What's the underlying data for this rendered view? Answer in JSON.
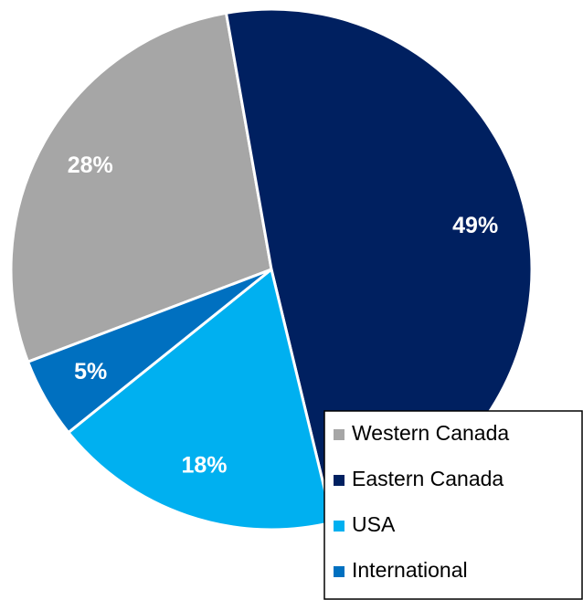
{
  "chart_data": {
    "type": "pie",
    "categories": [
      "Western Canada",
      "Eastern Canada",
      "USA",
      "International"
    ],
    "values": [
      28,
      49,
      18,
      5
    ],
    "value_labels": [
      "28%",
      "49%",
      "18%",
      "5%"
    ],
    "colors": [
      "#a6a6a6",
      "#002060",
      "#00b0f0",
      "#0070c0"
    ],
    "legend": "bottom-right"
  }
}
